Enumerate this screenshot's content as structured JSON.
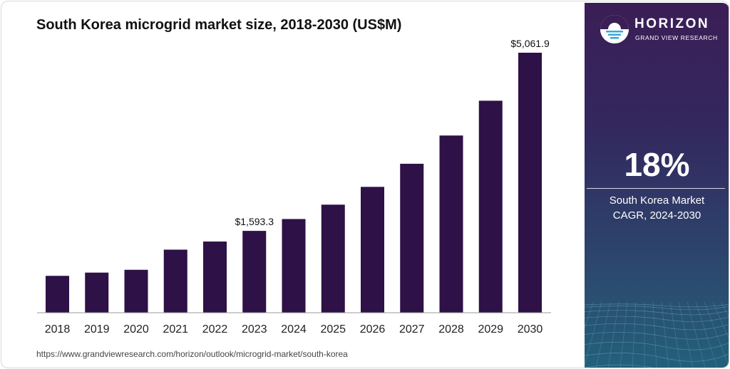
{
  "title": "South Korea microgrid market size, 2018-2030 (US$M)",
  "source": "https://www.grandviewresearch.com/horizon/outlook/microgrid-market/south-korea",
  "brand": {
    "name": "HORIZON",
    "tagline": "GRAND VIEW RESEARCH"
  },
  "cagr": {
    "value": "18%",
    "label_line1": "South Korea Market",
    "label_line2": "CAGR, 2024-2030"
  },
  "colors": {
    "bar": "#2e1146",
    "axis": "#999999",
    "panel_top": "#3b1e56",
    "panel_bottom": "#23607a"
  },
  "chart_data": {
    "type": "bar",
    "title": "South Korea microgrid market size, 2018-2030 (US$M)",
    "categories": [
      "2018",
      "2019",
      "2020",
      "2021",
      "2022",
      "2023",
      "2024",
      "2025",
      "2026",
      "2027",
      "2028",
      "2029",
      "2030"
    ],
    "values": [
      718,
      781,
      836,
      1228,
      1386,
      1593.3,
      1824,
      2104,
      2450,
      2900,
      3450,
      4127,
      5061.9
    ],
    "data_labels": [
      {
        "category": "2023",
        "text": "$1,593.3"
      },
      {
        "category": "2030",
        "text": "$5,061.9"
      }
    ],
    "ylim": [
      0,
      5061.9
    ],
    "xlabel": "",
    "ylabel": "",
    "grid": false,
    "legend": "none"
  }
}
